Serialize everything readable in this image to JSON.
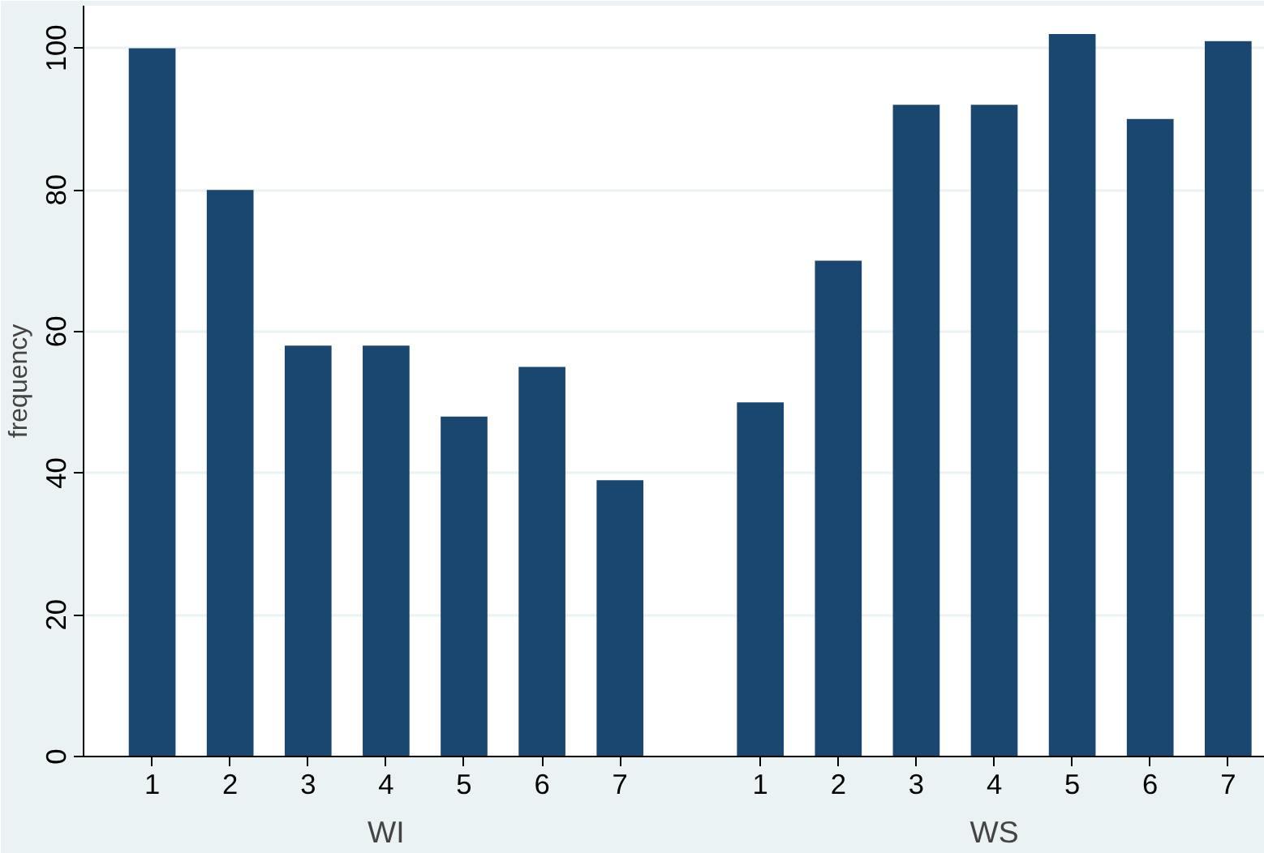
{
  "chart_data": {
    "type": "bar",
    "categories": [
      "1",
      "2",
      "3",
      "4",
      "5",
      "6",
      "7",
      "1",
      "2",
      "3",
      "4",
      "5",
      "6",
      "7"
    ],
    "values": [
      100,
      80,
      58,
      58,
      48,
      55,
      39,
      50,
      70,
      92,
      92,
      102,
      90,
      101
    ],
    "color": "#1a476f",
    "ylabel": "frequency",
    "ylim": [
      0,
      106
    ],
    "yticks": [
      0,
      20,
      40,
      60,
      80,
      100
    ],
    "grid": "y",
    "annotations": [
      "WI",
      "WS"
    ]
  }
}
